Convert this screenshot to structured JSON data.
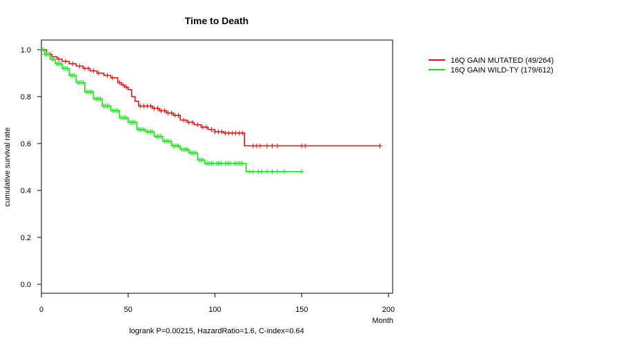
{
  "chart_data": {
    "type": "line",
    "title": "Time to Death",
    "xlabel": "Month",
    "ylabel": "cumulative survival rate",
    "footnote": "logrank P=0.00215, HazardRatio=1.6, C-index=0.64",
    "xlim": [
      0,
      200
    ],
    "ylim": [
      0,
      1
    ],
    "xticks": [
      0,
      50,
      100,
      150,
      200
    ],
    "yticks": [
      0.0,
      0.2,
      0.4,
      0.6,
      0.8,
      1.0
    ],
    "ytick_labels": [
      "0.0",
      "0.2",
      "0.4",
      "0.6",
      "0.8",
      "1.0"
    ],
    "grid": false,
    "legend_position": "top-right-outside",
    "series": [
      {
        "name": "16Q GAIN MUTATED (49/264)",
        "color": "#ff0000",
        "x": [
          0,
          3,
          6,
          9,
          12,
          16,
          20,
          24,
          28,
          32,
          36,
          40,
          44,
          46,
          48,
          50,
          52,
          54,
          56,
          60,
          64,
          68,
          72,
          76,
          80,
          84,
          88,
          92,
          96,
          100,
          105,
          110,
          116,
          117,
          130,
          150,
          170,
          195
        ],
        "y": [
          1.0,
          0.98,
          0.97,
          0.96,
          0.95,
          0.94,
          0.93,
          0.92,
          0.91,
          0.9,
          0.89,
          0.88,
          0.86,
          0.85,
          0.84,
          0.83,
          0.8,
          0.78,
          0.76,
          0.76,
          0.75,
          0.74,
          0.73,
          0.72,
          0.7,
          0.69,
          0.68,
          0.67,
          0.66,
          0.65,
          0.645,
          0.645,
          0.645,
          0.59,
          0.59,
          0.59,
          0.59,
          0.59
        ],
        "censor_x": [
          5,
          10,
          14,
          18,
          22,
          25,
          27,
          30,
          33,
          38,
          41,
          45,
          47,
          49,
          57,
          59,
          61,
          63,
          65,
          67,
          69,
          71,
          73,
          75,
          77,
          79,
          82,
          85,
          87,
          90,
          93,
          95,
          98,
          100,
          102,
          104,
          106,
          108,
          110,
          112,
          114,
          116,
          122,
          124,
          126,
          130,
          133,
          136,
          150,
          152,
          195
        ]
      },
      {
        "name": "16Q GAIN WILD-TY (179/612)",
        "color": "#00ee00",
        "x": [
          0,
          2,
          5,
          8,
          12,
          16,
          20,
          25,
          30,
          35,
          40,
          45,
          50,
          55,
          60,
          65,
          70,
          75,
          80,
          85,
          90,
          94,
          100,
          105,
          110,
          117,
          118,
          120,
          130,
          140,
          150
        ],
        "y": [
          1.0,
          0.98,
          0.96,
          0.94,
          0.92,
          0.89,
          0.86,
          0.82,
          0.79,
          0.76,
          0.74,
          0.71,
          0.69,
          0.66,
          0.65,
          0.63,
          0.61,
          0.59,
          0.575,
          0.56,
          0.53,
          0.515,
          0.515,
          0.515,
          0.515,
          0.515,
          0.48,
          0.48,
          0.48,
          0.48,
          0.48
        ],
        "censor_x": [
          1,
          2,
          3,
          4,
          6,
          7,
          9,
          10,
          11,
          13,
          14,
          15,
          17,
          18,
          19,
          21,
          22,
          23,
          24,
          26,
          27,
          28,
          29,
          31,
          32,
          33,
          34,
          36,
          37,
          38,
          39,
          41,
          42,
          43,
          44,
          46,
          47,
          48,
          49,
          51,
          52,
          53,
          54,
          56,
          57,
          58,
          59,
          61,
          62,
          63,
          64,
          66,
          67,
          68,
          69,
          71,
          72,
          73,
          74,
          76,
          77,
          78,
          79,
          81,
          82,
          83,
          84,
          86,
          87,
          88,
          89,
          91,
          92,
          93,
          95,
          96,
          97,
          98,
          99,
          101,
          102,
          103,
          104,
          106,
          107,
          108,
          109,
          111,
          112,
          113,
          114,
          115,
          116,
          120,
          122,
          125,
          127,
          130,
          133,
          136,
          140,
          150
        ]
      }
    ]
  }
}
